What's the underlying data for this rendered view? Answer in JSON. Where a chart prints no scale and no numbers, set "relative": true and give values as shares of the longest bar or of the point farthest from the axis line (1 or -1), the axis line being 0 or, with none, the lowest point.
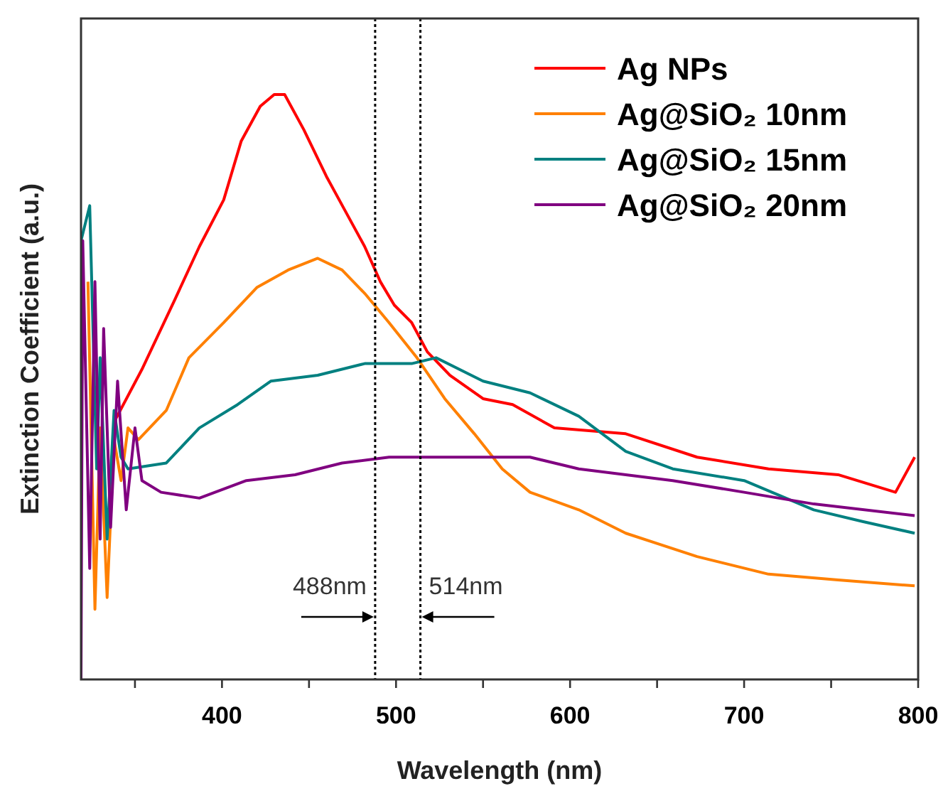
{
  "chart_data": {
    "type": "line",
    "relative": true,
    "xlabel": "Wavelength (nm)",
    "ylabel": "Extinction Coefficient (a.u.)",
    "xlim": [
      319,
      800
    ],
    "xticks": [
      {
        "value": 350,
        "label": null
      },
      400,
      {
        "value": 450,
        "label": null
      },
      500,
      {
        "value": 550,
        "label": null
      },
      600,
      {
        "value": 650,
        "label": null
      },
      700,
      {
        "value": 750,
        "label": null
      },
      800
    ],
    "tick_labels": "x",
    "legend": "top right",
    "grid": false,
    "line_style": "solid",
    "series": [
      {
        "name": "Ag NPs",
        "color": "#ff0000",
        "x": [
          338,
          354,
          373,
          387,
          401,
          411,
          422,
          430,
          436,
          447,
          460,
          471,
          482,
          491,
          499,
          509,
          518,
          531,
          550,
          567,
          591,
          632,
          673,
          714,
          754,
          787,
          798
        ],
        "values": [
          0.44,
          0.53,
          0.65,
          0.74,
          0.82,
          0.92,
          0.98,
          1.0,
          1.0,
          0.94,
          0.86,
          0.8,
          0.74,
          0.68,
          0.64,
          0.61,
          0.56,
          0.52,
          0.48,
          0.47,
          0.43,
          0.42,
          0.38,
          0.36,
          0.35,
          0.32,
          0.38
        ]
      },
      {
        "name": "Ag@SiO₂ 10nm",
        "color": "#ff8000",
        "x": [
          323,
          327,
          330,
          334,
          338,
          342,
          346,
          352,
          368,
          381,
          401,
          420,
          438,
          455,
          469,
          482,
          496,
          512,
          528,
          545,
          561,
          577,
          605,
          632,
          673,
          714,
          754,
          798
        ],
        "values": [
          0.68,
          0.12,
          0.43,
          0.14,
          0.41,
          0.34,
          0.43,
          0.41,
          0.46,
          0.55,
          0.61,
          0.67,
          0.7,
          0.72,
          0.7,
          0.66,
          0.61,
          0.55,
          0.48,
          0.42,
          0.36,
          0.32,
          0.29,
          0.25,
          0.21,
          0.18,
          0.17,
          0.16
        ]
      },
      {
        "name": "Ag@SiO₂ 15nm",
        "color": "#008080",
        "x": [
          319,
          324,
          328,
          330,
          334,
          338,
          342,
          346,
          368,
          387,
          409,
          428,
          455,
          482,
          509,
          523,
          550,
          577,
          605,
          632,
          659,
          700,
          740,
          768,
          798
        ],
        "values": [
          0.75,
          0.81,
          0.36,
          0.55,
          0.24,
          0.46,
          0.38,
          0.36,
          0.37,
          0.43,
          0.47,
          0.51,
          0.52,
          0.54,
          0.54,
          0.55,
          0.51,
          0.49,
          0.45,
          0.39,
          0.36,
          0.34,
          0.29,
          0.27,
          0.25
        ]
      },
      {
        "name": "Ag@SiO₂ 20nm",
        "color": "#800080",
        "x": [
          319,
          320,
          324,
          327,
          330,
          332,
          336,
          340,
          345,
          350,
          354,
          365,
          387,
          414,
          442,
          469,
          496,
          523,
          550,
          577,
          605,
          632,
          659,
          700,
          740,
          798
        ],
        "values": [
          0,
          0.75,
          0.19,
          0.68,
          0.24,
          0.6,
          0.26,
          0.51,
          0.29,
          0.43,
          0.34,
          0.32,
          0.31,
          0.34,
          0.35,
          0.37,
          0.38,
          0.38,
          0.38,
          0.38,
          0.36,
          0.35,
          0.34,
          0.32,
          0.3,
          0.28
        ]
      }
    ],
    "ref_lines": [
      {
        "axis": "x",
        "value": 488,
        "label": "488nm",
        "line_style": "dotted",
        "color": "#000000"
      },
      {
        "axis": "x",
        "value": 514,
        "label": "514nm",
        "line_style": "dotted",
        "color": "#000000"
      }
    ]
  }
}
